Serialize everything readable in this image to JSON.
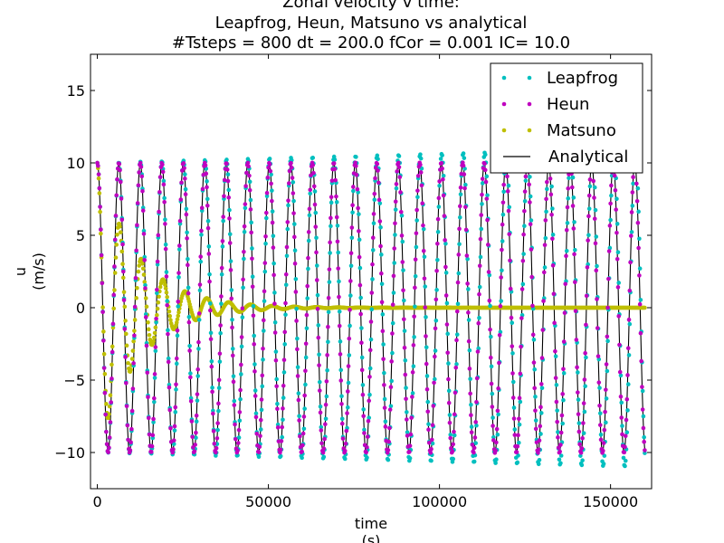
{
  "chart_data": {
    "type": "scatter",
    "title_lines": [
      "Zonal velocity v time:",
      "Leapfrog, Heun, Matsuno vs analytical",
      "#Tsteps = 800 dt = 200.0 fCor = 0.001 IC= 10.0"
    ],
    "xlabel_lines": [
      "time",
      "(s)"
    ],
    "ylabel_lines": [
      "u",
      "(m/s)"
    ],
    "xlim": [
      -2000,
      162000
    ],
    "ylim": [
      -12.5,
      17.5
    ],
    "xticks": [
      0,
      50000,
      100000,
      150000
    ],
    "xtick_labels": [
      "0",
      "50000",
      "100000",
      "150000"
    ],
    "yticks": [
      -10,
      -5,
      0,
      5,
      10,
      15
    ],
    "ytick_labels": [
      "−10",
      "−5",
      "0",
      "5",
      "10",
      "15"
    ],
    "grid": false,
    "legend_position": "top-right",
    "params": {
      "n_steps": 800,
      "dt": 200.0,
      "f_cor": 0.001,
      "initial_condition": 10.0
    },
    "series": [
      {
        "name": "Leapfrog",
        "marker": "dot",
        "color": "#00bfbf",
        "formula": "u(t) = 10*cos(0.99875*f*t)*(1 + 0.10*t/160000), sampled every dt"
      },
      {
        "name": "Heun",
        "marker": "dot",
        "color": "#bf00bf",
        "formula": "u(t) = 10*(1 + 0.0000000025*t)*cos(1.00017*f*t) sampled every dt"
      },
      {
        "name": "Matsuno",
        "marker": "dot",
        "color": "#bfbf00",
        "formula": "u(t) = 10*exp(-0.000085*t)*cos(0.98*f*t) sampled every dt"
      },
      {
        "name": "Analytical",
        "marker": "line",
        "color": "#000000",
        "formula": "u(t) = 10*cos(f*t)"
      }
    ]
  }
}
